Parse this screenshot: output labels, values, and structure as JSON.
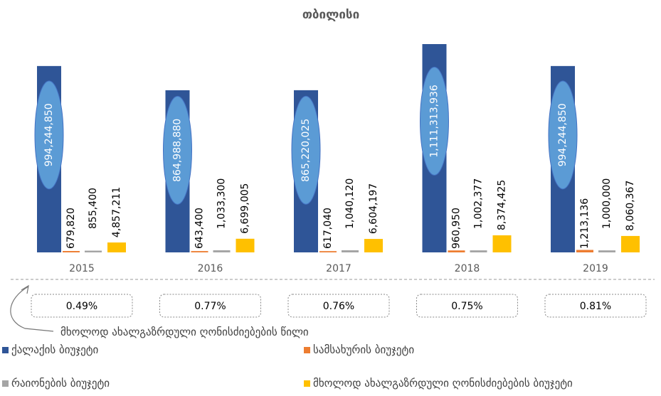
{
  "chart_data": {
    "type": "bar",
    "title": "თბილისი",
    "categories": [
      "2015",
      "2016",
      "2017",
      "2018",
      "2019"
    ],
    "series": [
      {
        "name": "ქალაქის ბიუჯეტი",
        "color": "#2F5597",
        "values": [
          994244850,
          864988880,
          865220025,
          1111313936,
          994244850
        ],
        "value_labels": [
          "994,244,850",
          "864,988,880",
          "865,220,025",
          "1,111,313,936",
          "994,244,850"
        ]
      },
      {
        "name": "სამსახურის ბიუჯეტი",
        "color": "#ED7D31",
        "values": [
          679820,
          643400,
          617040,
          960950,
          1213136
        ],
        "value_labels": [
          "679,820",
          "643,400",
          "617,040",
          "960,950",
          "1,213,136"
        ]
      },
      {
        "name": "რაიონების ბიუჯეტი",
        "color": "#A5A5A5",
        "values": [
          855400,
          1033300,
          1040120,
          1002377,
          1000000
        ],
        "value_labels": [
          "855,400",
          "1,033,300",
          "1,040,120",
          "1,002,377",
          "1,000,000"
        ]
      },
      {
        "name": "მხოლოდ ახალგაზრდული ღონისძიებების ბიუჯეტი",
        "color": "#FFC000",
        "values": [
          4857211,
          6699005,
          6604197,
          8374425,
          8060367
        ],
        "value_labels": [
          "4,857,211",
          "6,699,005",
          "6,604,197",
          "8,374,425",
          "8,060,367"
        ]
      }
    ],
    "share": {
      "label": "მხოლოდ ახალგაზრდული ღონისძიებების წილი",
      "values": [
        0.49,
        0.77,
        0.76,
        0.75,
        0.81
      ],
      "value_labels": [
        "0.49%",
        "0.77%",
        "0.76%",
        "0.75%",
        "0.81%"
      ]
    }
  }
}
